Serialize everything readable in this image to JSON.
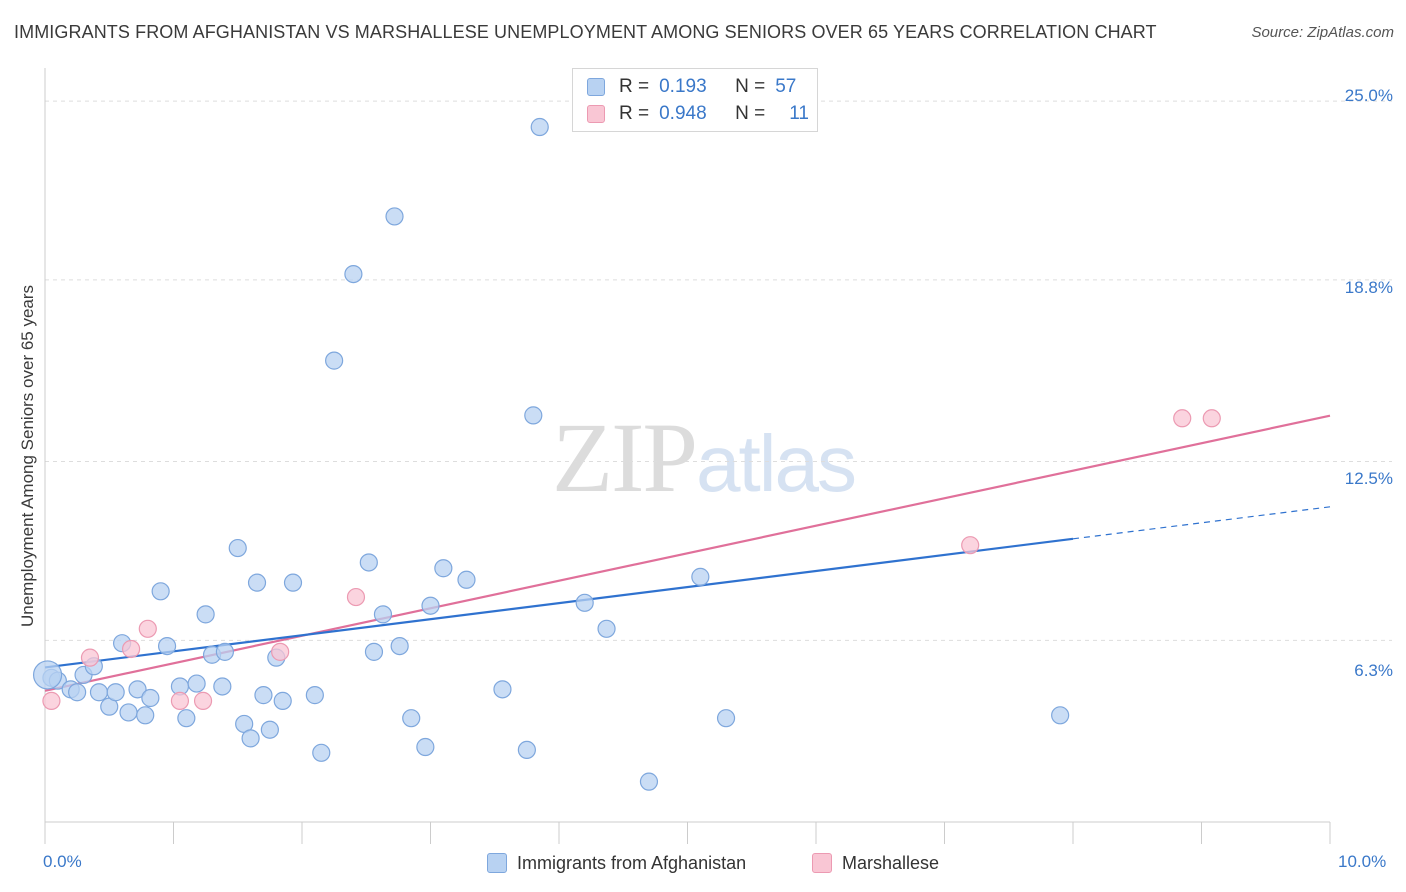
{
  "header": {
    "title": "IMMIGRANTS FROM AFGHANISTAN VS MARSHALLESE UNEMPLOYMENT AMONG SENIORS OVER 65 YEARS CORRELATION CHART",
    "source": "Source: ZipAtlas.com"
  },
  "watermark": {
    "zip": "ZIP",
    "atlas": "atlas"
  },
  "legend": {
    "rows": [
      {
        "r_label": "R =",
        "r_value": "0.193",
        "n_label": "N =",
        "n_value": "57"
      },
      {
        "r_label": "R =",
        "r_value": "0.948",
        "n_label": "N =",
        "n_value": "11"
      }
    ],
    "bottom": [
      {
        "label": "Immigrants from Afghanistan"
      },
      {
        "label": "Marshallese"
      }
    ]
  },
  "axis_text": {
    "ylabel": "Unemployment Among Seniors over 65 years",
    "x_min_label": "0.0%",
    "x_max_label": "10.0%",
    "y_ticks": [
      "25.0%",
      "18.8%",
      "12.5%",
      "6.3%"
    ]
  },
  "colors": {
    "blue_fill": "#b8d2f2",
    "blue_stroke": "#7ea7dd",
    "blue_line": "#2f72cf",
    "pink_fill": "#f9c6d4",
    "pink_stroke": "#ec9ab2",
    "pink_line": "#e0709a",
    "grid": "#dddddd",
    "tick_label": "#3a78c9"
  },
  "chart_data": {
    "type": "scatter",
    "title": "IMMIGRANTS FROM AFGHANISTAN VS MARSHALLESE UNEMPLOYMENT AMONG SENIORS OVER 65 YEARS CORRELATION CHART",
    "xlabel": "",
    "ylabel": "Unemployment Among Seniors over 65 years",
    "xlim": [
      0,
      10
    ],
    "ylim": [
      0,
      25.8
    ],
    "y_gridlines": [
      6.3,
      12.5,
      18.8,
      25.0
    ],
    "legend_position": "top-center",
    "series": [
      {
        "name": "Immigrants from Afghanistan",
        "r": 0.193,
        "n": 57,
        "points": [
          [
            0.05,
            5.0
          ],
          [
            0.1,
            4.9
          ],
          [
            0.2,
            4.6
          ],
          [
            0.25,
            4.5
          ],
          [
            0.3,
            5.1
          ],
          [
            0.38,
            5.4
          ],
          [
            0.42,
            4.5
          ],
          [
            0.5,
            4.0
          ],
          [
            0.55,
            4.5
          ],
          [
            0.6,
            6.2
          ],
          [
            0.65,
            3.8
          ],
          [
            0.72,
            4.6
          ],
          [
            0.78,
            3.7
          ],
          [
            0.82,
            4.3
          ],
          [
            0.9,
            8.0
          ],
          [
            0.95,
            6.1
          ],
          [
            1.05,
            4.7
          ],
          [
            1.1,
            3.6
          ],
          [
            1.18,
            4.8
          ],
          [
            1.25,
            7.2
          ],
          [
            1.3,
            5.8
          ],
          [
            1.38,
            4.7
          ],
          [
            1.4,
            5.9
          ],
          [
            1.5,
            9.5
          ],
          [
            1.55,
            3.4
          ],
          [
            1.6,
            2.9
          ],
          [
            1.65,
            8.3
          ],
          [
            1.7,
            4.4
          ],
          [
            1.75,
            3.2
          ],
          [
            1.8,
            5.7
          ],
          [
            1.85,
            4.2
          ],
          [
            1.93,
            8.3
          ],
          [
            2.1,
            4.4
          ],
          [
            2.15,
            2.4
          ],
          [
            2.25,
            16.0
          ],
          [
            2.4,
            19.0
          ],
          [
            2.52,
            9.0
          ],
          [
            2.56,
            5.9
          ],
          [
            2.63,
            7.2
          ],
          [
            2.72,
            21.0
          ],
          [
            2.76,
            6.1
          ],
          [
            2.85,
            3.6
          ],
          [
            2.96,
            2.6
          ],
          [
            3.0,
            7.5
          ],
          [
            3.1,
            8.8
          ],
          [
            3.28,
            8.4
          ],
          [
            3.56,
            4.6
          ],
          [
            3.75,
            2.5
          ],
          [
            3.8,
            14.1
          ],
          [
            3.85,
            24.1
          ],
          [
            4.2,
            7.6
          ],
          [
            4.37,
            6.7
          ],
          [
            4.7,
            1.4
          ],
          [
            5.1,
            8.5
          ],
          [
            5.3,
            3.6
          ],
          [
            7.9,
            3.7
          ],
          [
            0.02,
            5.1
          ]
        ],
        "trend": {
          "x0": 0,
          "y0": 5.36,
          "x1": 8.0,
          "y1": 9.82,
          "dashed_to_x": 10.0,
          "dashed_to_y": 10.93
        }
      },
      {
        "name": "Marshallese",
        "r": 0.948,
        "n": 11,
        "points": [
          [
            0.05,
            4.2
          ],
          [
            0.35,
            5.7
          ],
          [
            0.67,
            6.0
          ],
          [
            0.8,
            6.7
          ],
          [
            1.05,
            4.2
          ],
          [
            1.23,
            4.2
          ],
          [
            1.83,
            5.9
          ],
          [
            2.42,
            7.8
          ],
          [
            7.2,
            9.6
          ],
          [
            8.85,
            14.0
          ],
          [
            9.08,
            14.0
          ]
        ],
        "trend": {
          "x0": 0,
          "y0": 4.55,
          "x1": 10.0,
          "y1": 14.09
        }
      }
    ]
  }
}
